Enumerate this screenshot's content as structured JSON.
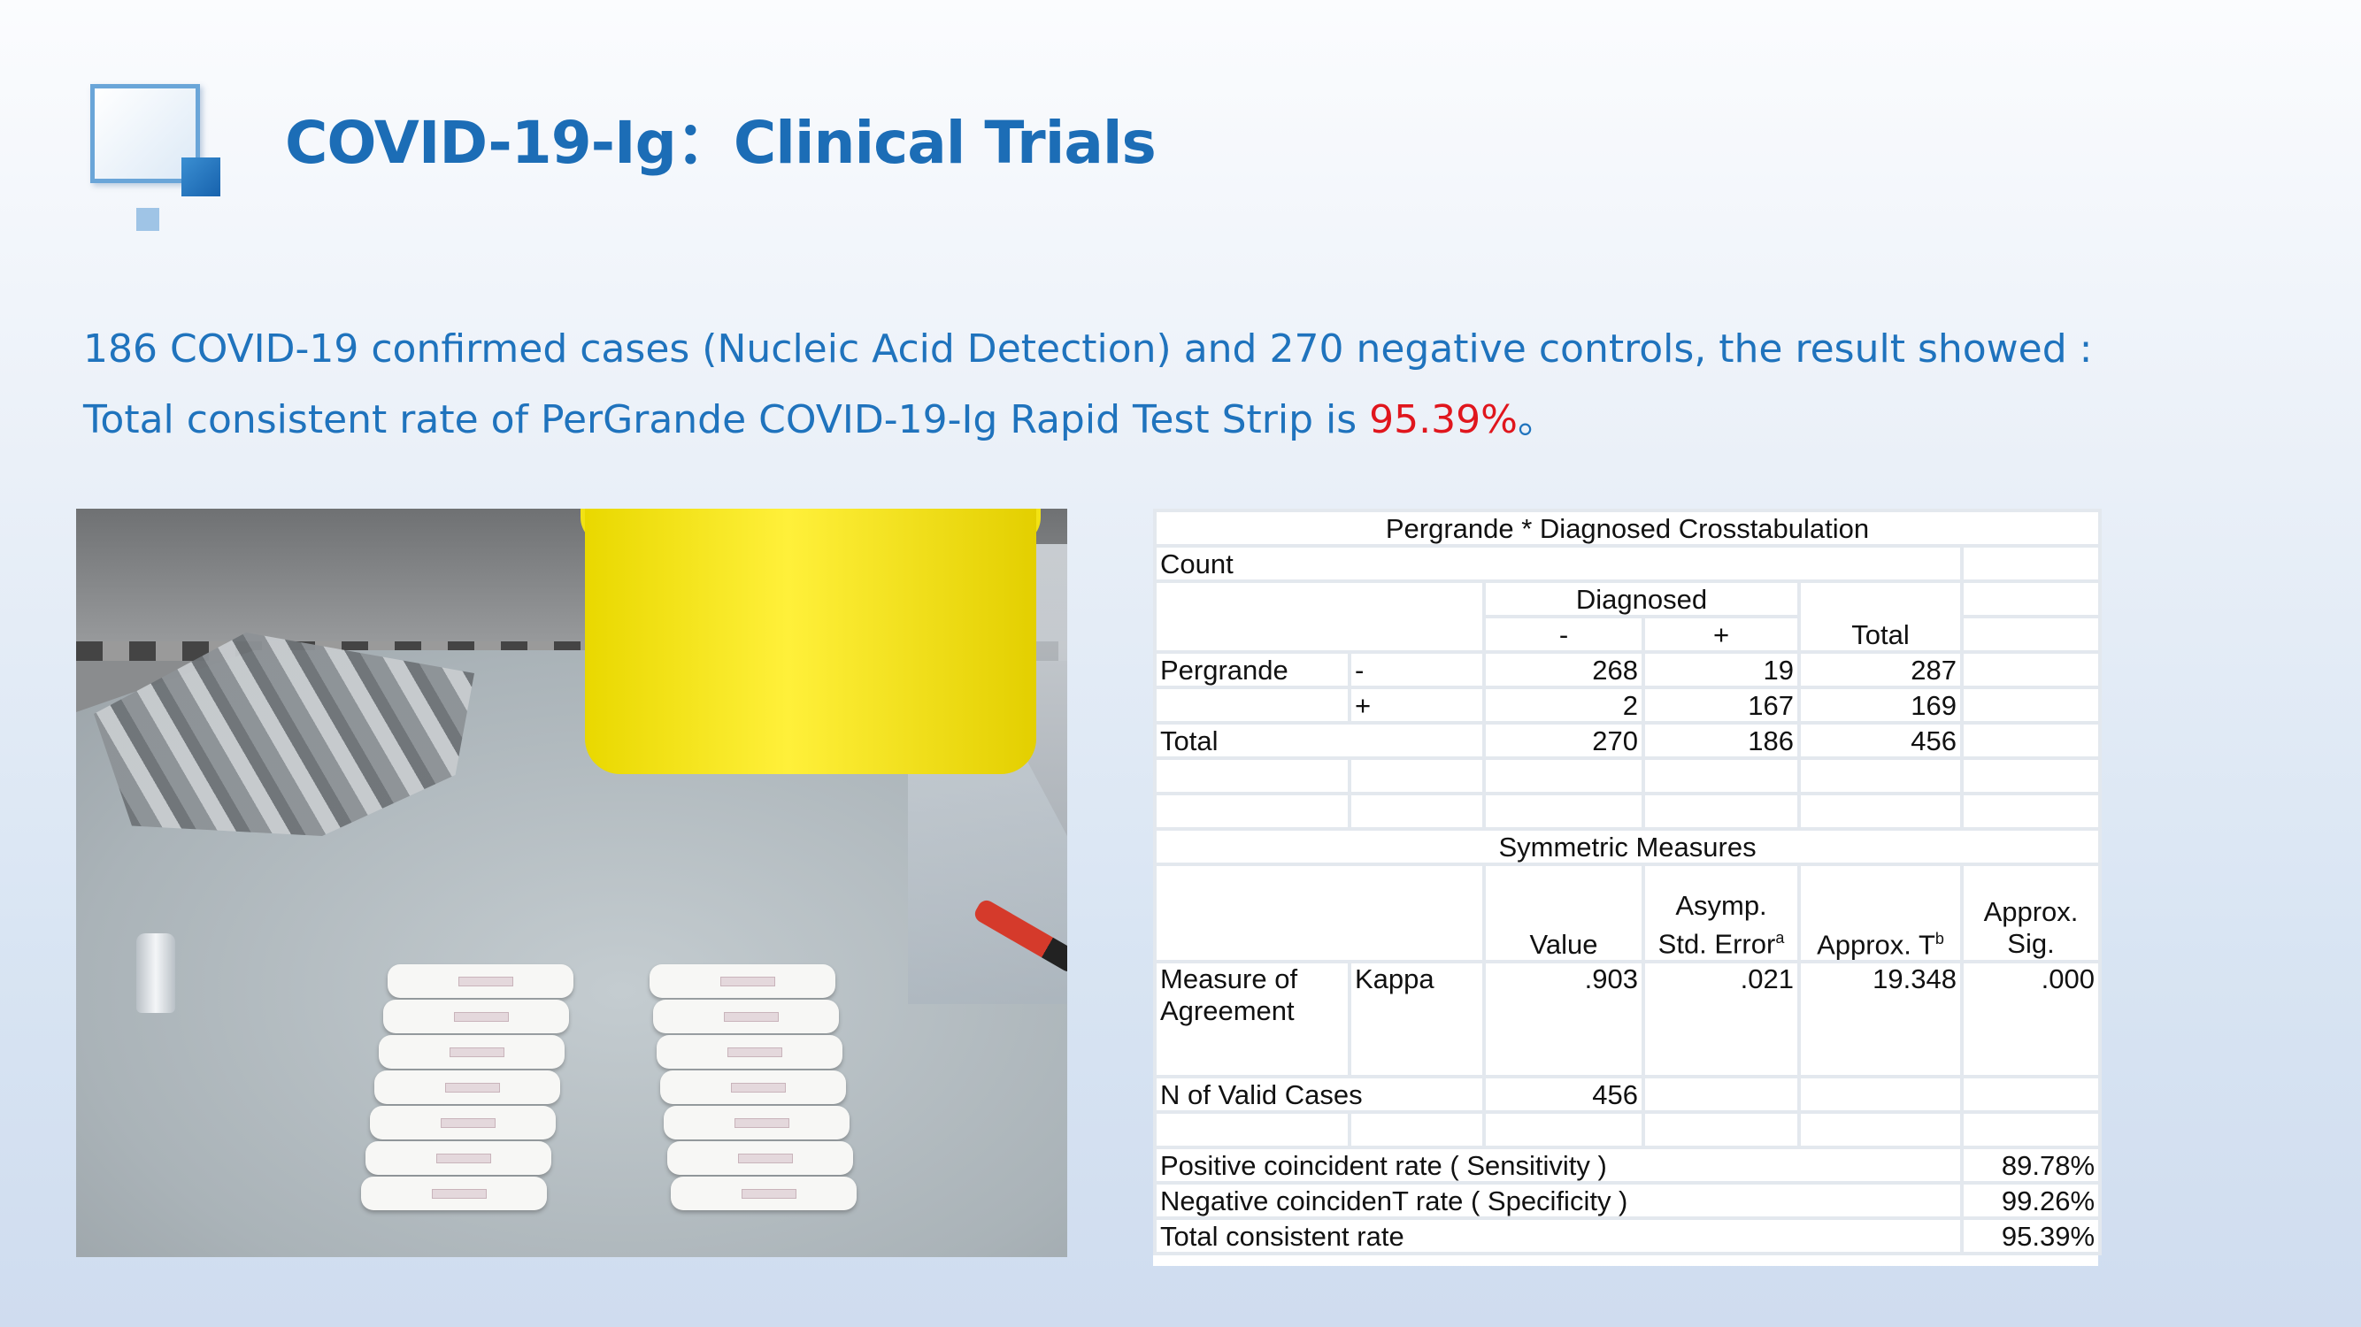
{
  "header": {
    "title": "COVID-19-Ig：Clinical Trials"
  },
  "intro": {
    "line1": "186 COVID-19 confirmed cases  (Nucleic Acid Detection) and 270  negative controls, the result  showed :",
    "line2_prefix": "Total consistent rate of  PerGrande COVID-19-Ig Rapid  Test Strip is ",
    "line2_highlight": "95.39%",
    "line2_suffix": "。"
  },
  "crosstab": {
    "title": "Pergrande * Diagnosed Crosstabulation",
    "count_label": "Count",
    "diagnosed_label": "Diagnosed",
    "col_neg": "-",
    "col_pos": "+",
    "col_total": "Total",
    "row_group": "Pergrande",
    "rows": [
      {
        "label": "-",
        "neg": "268",
        "pos": "19",
        "total": "287"
      },
      {
        "label": "+",
        "neg": "2",
        "pos": "167",
        "total": "169"
      }
    ],
    "total_row": {
      "label": "Total",
      "neg": "270",
      "pos": "186",
      "total": "456"
    }
  },
  "symmetric": {
    "title": "Symmetric Measures",
    "col_value": "Value",
    "col_asymp": "Asymp. Std. Error",
    "col_asymp_sup": "a",
    "col_approx_t": "Approx. T",
    "col_approx_t_sup": "b",
    "col_approx_sig": "Approx. Sig.",
    "measure_label": "Measure of Agreement",
    "kappa_label": "Kappa",
    "kappa_value": ".903",
    "kappa_asymp": ".021",
    "kappa_t": "19.348",
    "kappa_sig": ".000",
    "valid_label": "N of Valid Cases",
    "valid_value": "456"
  },
  "rates": [
    {
      "label": "Positive coincident rate ( Sensitivity )",
      "value": "89.78%"
    },
    {
      "label": "Negative coincidenT rate ( Specificity )",
      "value": "99.26%"
    },
    {
      "label": "Total consistent rate",
      "value": "95.39%"
    }
  ],
  "colors": {
    "title": "#1c6db6",
    "body_text": "#1f73bd",
    "highlight": "#e0161d"
  }
}
